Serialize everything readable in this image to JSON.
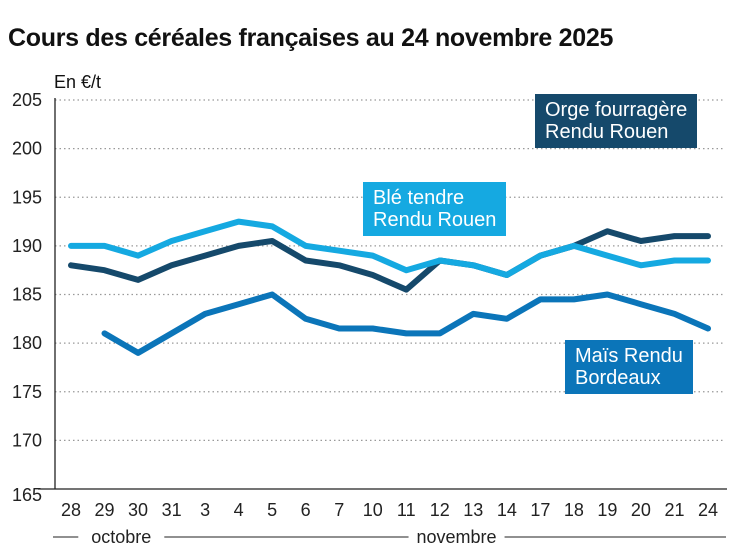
{
  "chart_data": {
    "type": "line",
    "title": "Cours des céréales françaises au 24 novembre 2025",
    "ylabel": "En €/t",
    "ylim": [
      165,
      205
    ],
    "yticks": [
      165,
      170,
      175,
      180,
      185,
      190,
      195,
      200,
      205
    ],
    "grid": true,
    "categories": [
      "28",
      "29",
      "30",
      "31",
      "3",
      "4",
      "5",
      "6",
      "7",
      "10",
      "11",
      "12",
      "13",
      "14",
      "17",
      "18",
      "19",
      "20",
      "21",
      "24"
    ],
    "month_groups": [
      {
        "label": "octobre",
        "from": 0,
        "to": 3
      },
      {
        "label": "novembre",
        "from": 4,
        "to": 19
      }
    ],
    "series": [
      {
        "name": "Blé tendre Rendu Rouen",
        "color": "#15a9e1",
        "values": [
          190,
          190,
          189,
          190.5,
          191.5,
          192.5,
          192,
          190,
          189.5,
          189,
          187.5,
          188.5,
          188,
          187,
          189,
          190,
          189,
          188,
          188.5,
          188.5
        ]
      },
      {
        "name": "Orge fourragère Rendu Rouen",
        "color": "#15496b",
        "values": [
          188,
          187.5,
          186.5,
          188,
          189,
          190,
          190.5,
          188.5,
          188,
          187,
          185.5,
          188.5,
          188,
          187,
          189,
          190,
          191.5,
          190.5,
          191,
          191
        ]
      },
      {
        "name": "Maïs Rendu Bordeaux",
        "color": "#0b75b9",
        "values": [
          null,
          181,
          179,
          181,
          183,
          184,
          185,
          182.5,
          181.5,
          181.5,
          181,
          181,
          183,
          182.5,
          184.5,
          184.5,
          185,
          184,
          183,
          181.5
        ]
      }
    ],
    "labels": {
      "ble": [
        "Blé tendre",
        "Rendu Rouen"
      ],
      "orge": [
        "Orge fourragère",
        "Rendu Rouen"
      ],
      "mais": [
        "Maïs Rendu",
        "Bordeaux"
      ]
    }
  }
}
